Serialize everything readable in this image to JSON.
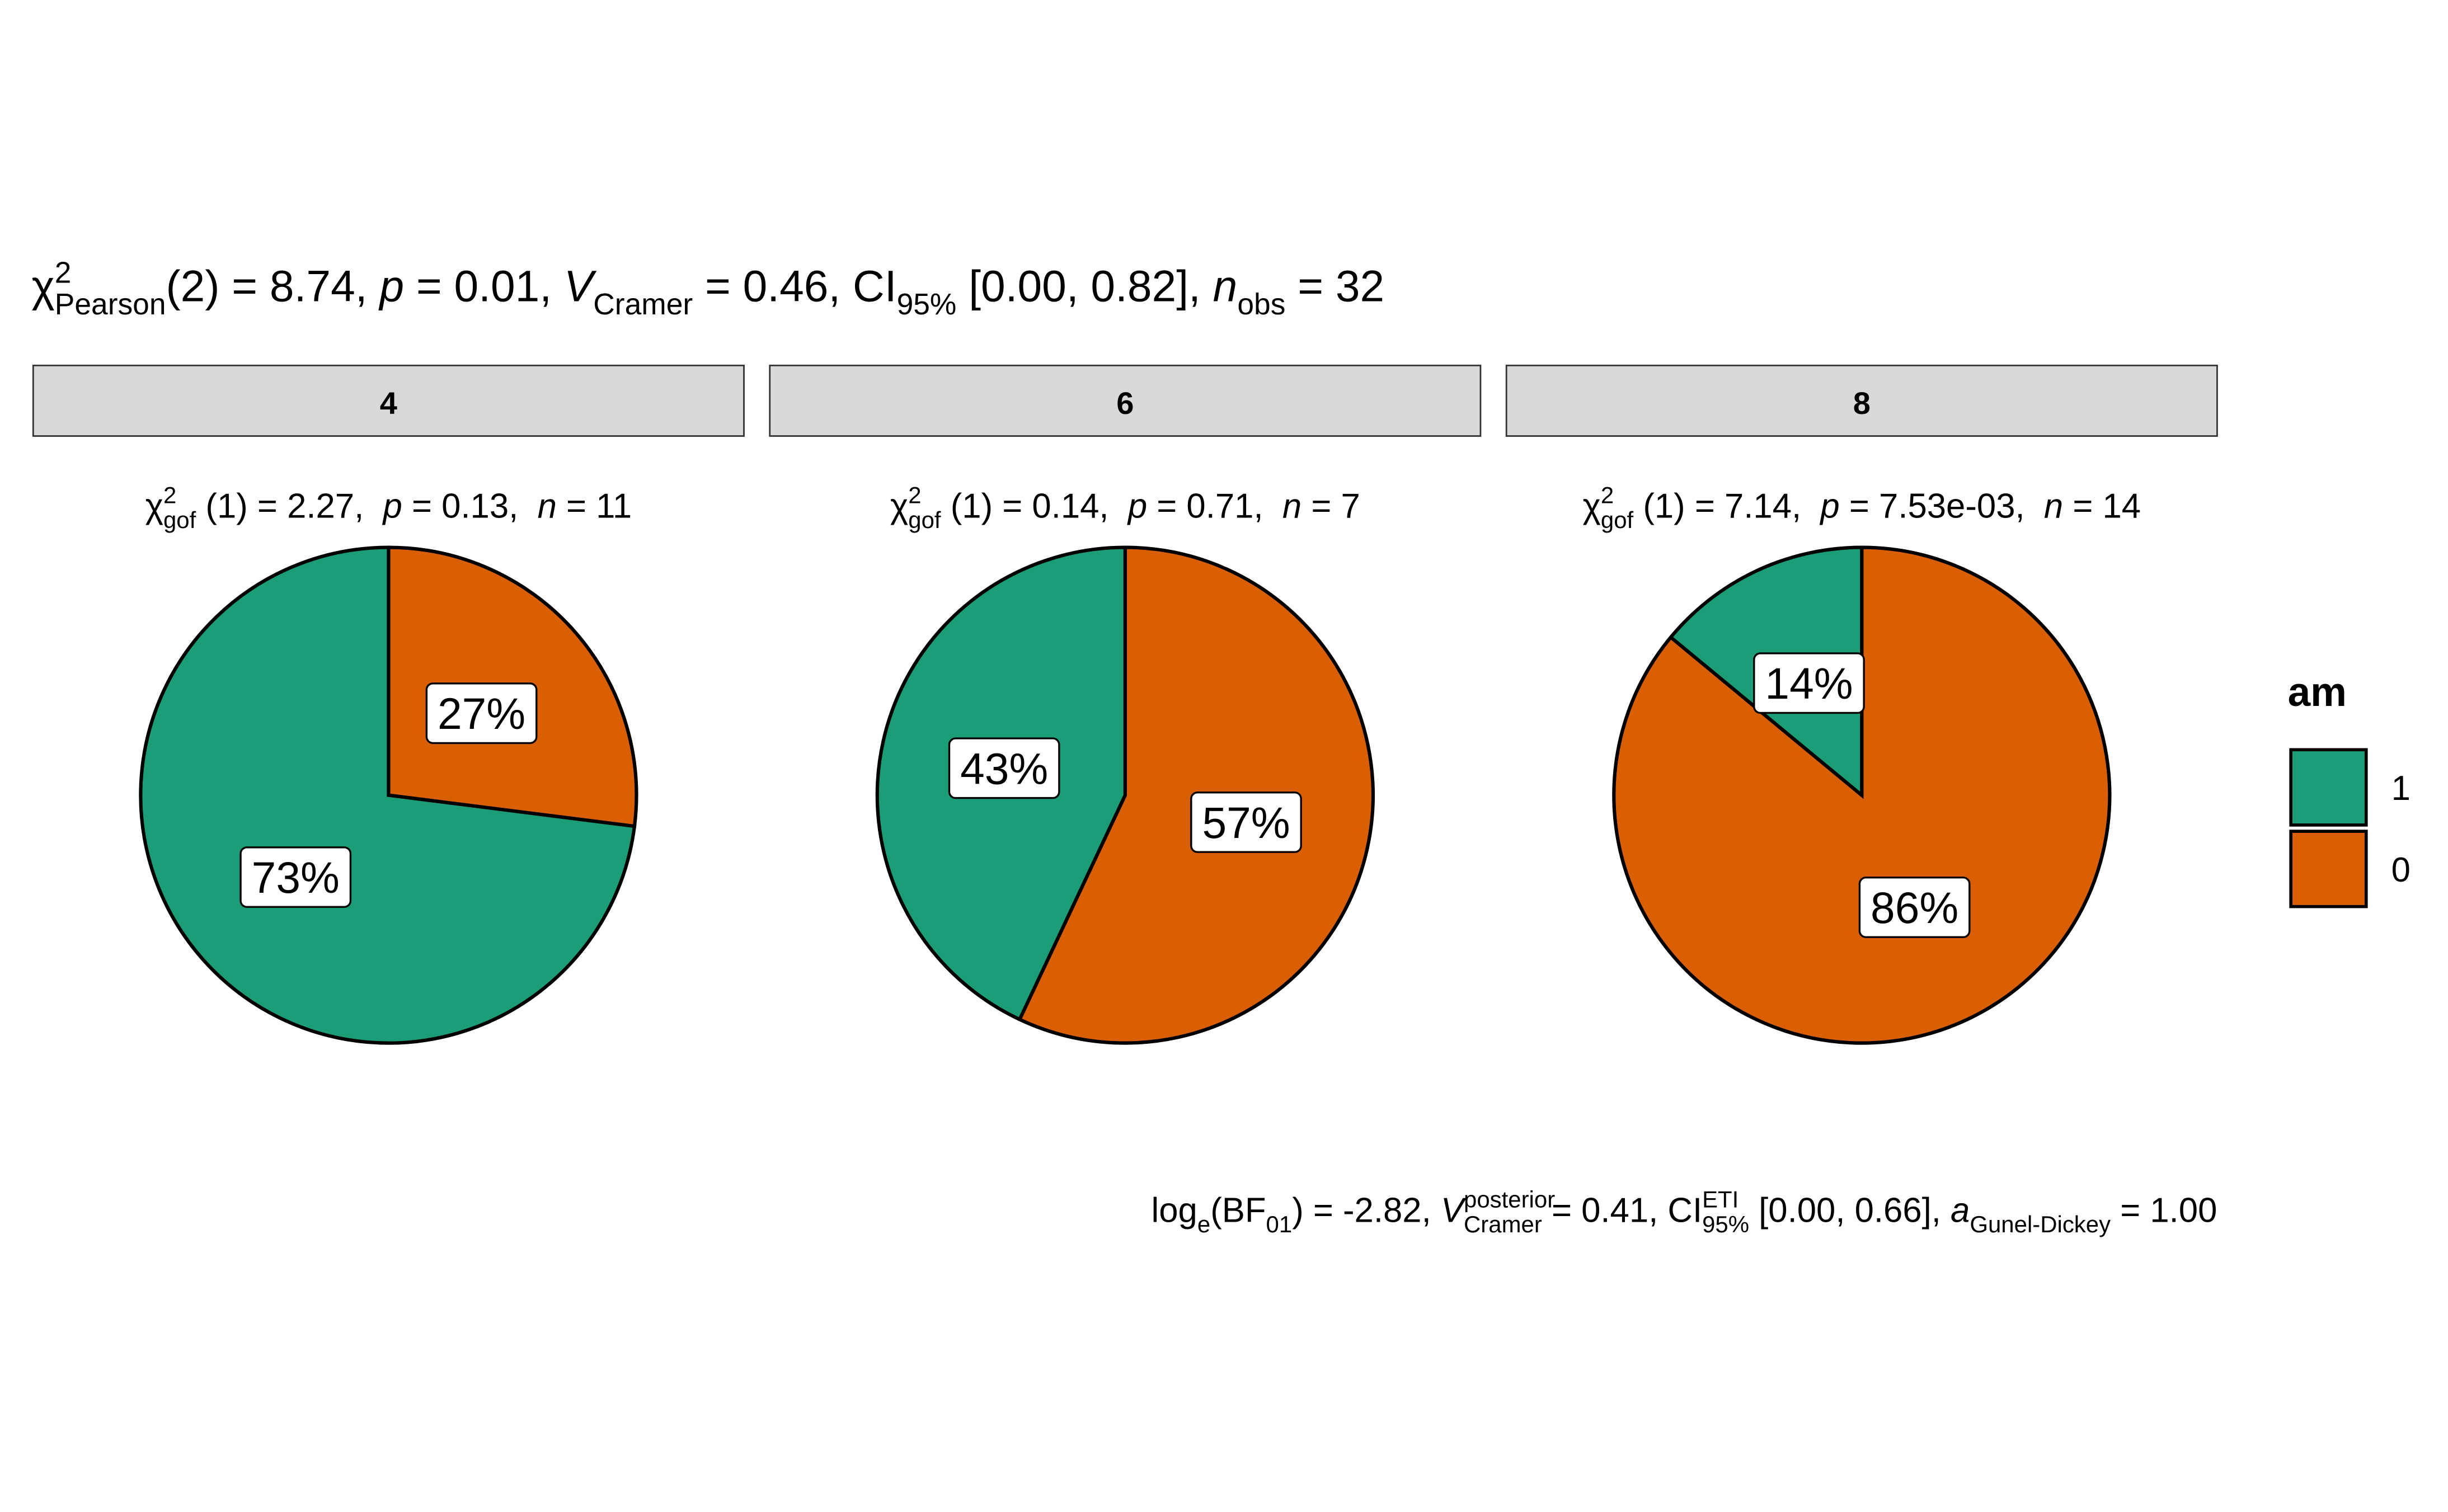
{
  "chart_data": {
    "type": "pie",
    "title": [
      "χ",
      "2",
      "Pearson",
      "(2) = 8.74, ",
      "p",
      " = 0.01, ",
      "V",
      "Cramer",
      " = 0.46, CI",
      "95%",
      " [0.00, 0.82], ",
      "n",
      "obs",
      " = 32"
    ],
    "caption": [
      "log",
      "e",
      "(BF",
      "01",
      ") = -2.82, ",
      "V",
      "posterior",
      "Cramer",
      " = 0.41, CI",
      "ETI",
      "95%",
      " [0.00, 0.66], ",
      "a",
      "Gunel-Dickey",
      " = 1.00"
    ],
    "legend_title": "am",
    "categories": [
      "1",
      "0"
    ],
    "colors": [
      "#1b9e77",
      "#d95f02"
    ],
    "facets": [
      {
        "label": "4",
        "subtitle": [
          "χ",
          "2",
          "gof",
          " (1) = 2.27,  ",
          "p",
          " = 0.13,  ",
          "n",
          " = 11"
        ],
        "values": [
          73,
          27
        ],
        "value_labels": [
          "73%",
          "27%"
        ]
      },
      {
        "label": "6",
        "subtitle": [
          "χ",
          "2",
          "gof",
          " (1) = 0.14,  ",
          "p",
          " = 0.71,  ",
          "n",
          " = 7"
        ],
        "values": [
          43,
          57
        ],
        "value_labels": [
          "43%",
          "57%"
        ]
      },
      {
        "label": "8",
        "subtitle": [
          "χ",
          "2",
          "gof",
          " (1) = 7.14,  ",
          "p",
          " = 7.53e-03,  ",
          "n",
          " = 14"
        ],
        "values": [
          14,
          86
        ],
        "value_labels": [
          "14%",
          "86%"
        ]
      }
    ]
  }
}
